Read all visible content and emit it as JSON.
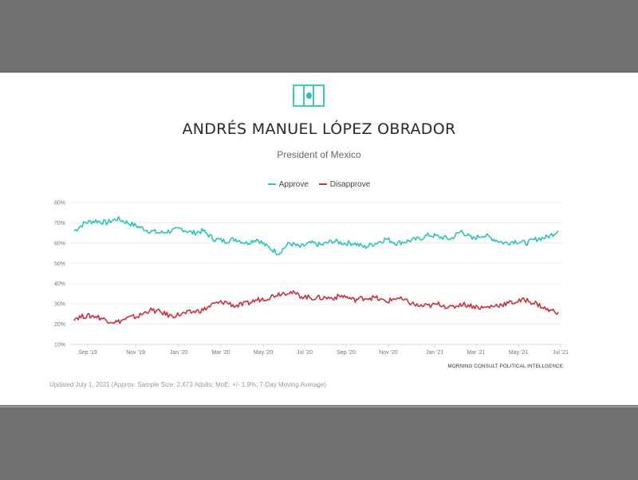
{
  "header": {
    "icon": "mexico-flag-icon",
    "title": "ANDRÉS MANUEL LÓPEZ OBRADOR",
    "subtitle": "President of Mexico"
  },
  "legend": [
    {
      "label": "Approve",
      "color": "#2ec4b6"
    },
    {
      "label": "Disapprove",
      "color": "#c8323c"
    }
  ],
  "footer": {
    "credit": "MORNING CONSULT POLITICAL INTELLGENCE",
    "note": "Updated July 1, 2021 (Approx. Sample Size: 2,673 Adults; MoE: +/- 1.9%; 7-Day Moving Average)"
  },
  "chart_data": {
    "type": "line",
    "title": "ANDRÉS MANUEL LÓPEZ OBRADOR",
    "subtitle": "President of Mexico",
    "xlabel": "",
    "ylabel": "",
    "ylim": [
      10,
      80
    ],
    "yticks": [
      "10%",
      "20%",
      "30%",
      "40%",
      "50%",
      "60%",
      "70%",
      "80%"
    ],
    "xticks": [
      "Sep '19",
      "Nov '19",
      "Jan '20",
      "Mar '20",
      "May '20",
      "Jul '20",
      "Sep '20",
      "Nov '20",
      "Jan '21",
      "Mar '21",
      "May '21",
      "Jul '21"
    ],
    "grid": true,
    "legend_position": "top",
    "x": [
      "2019-08-15",
      "2019-09-01",
      "2019-09-15",
      "2019-10-01",
      "2019-10-15",
      "2019-11-01",
      "2019-11-15",
      "2019-12-01",
      "2019-12-15",
      "2020-01-01",
      "2020-01-15",
      "2020-02-01",
      "2020-02-15",
      "2020-03-01",
      "2020-03-15",
      "2020-04-01",
      "2020-04-15",
      "2020-05-01",
      "2020-05-15",
      "2020-06-01",
      "2020-06-15",
      "2020-07-01",
      "2020-07-15",
      "2020-08-01",
      "2020-08-15",
      "2020-09-01",
      "2020-09-15",
      "2020-10-01",
      "2020-10-15",
      "2020-11-01",
      "2020-11-15",
      "2020-12-01",
      "2020-12-15",
      "2021-01-01",
      "2021-01-15",
      "2021-02-01",
      "2021-02-15",
      "2021-03-01",
      "2021-03-15",
      "2021-04-01",
      "2021-04-15",
      "2021-05-01",
      "2021-05-15",
      "2021-06-01",
      "2021-06-15",
      "2021-07-01"
    ],
    "series": [
      {
        "name": "Approve",
        "color": "#2ec4b6",
        "values": [
          66,
          70,
          71,
          70,
          72,
          70,
          68,
          66,
          65,
          66,
          67,
          65,
          66,
          62,
          61,
          62,
          60,
          62,
          58,
          55,
          60,
          58,
          60,
          59,
          61,
          60,
          60,
          58,
          60,
          62,
          60,
          61,
          62,
          64,
          63,
          62,
          66,
          62,
          64,
          62,
          60,
          61,
          60,
          62,
          63,
          66
        ]
      },
      {
        "name": "Disapprove",
        "color": "#c8323c",
        "values": [
          23,
          24,
          24,
          22,
          21,
          23,
          24,
          27,
          26,
          24,
          25,
          26,
          27,
          30,
          31,
          29,
          30,
          32,
          33,
          35,
          36,
          34,
          33,
          33,
          33,
          34,
          32,
          33,
          33,
          31,
          33,
          31,
          29,
          29,
          30,
          28,
          30,
          29,
          28,
          29,
          30,
          31,
          32,
          30,
          27,
          26
        ]
      }
    ]
  }
}
